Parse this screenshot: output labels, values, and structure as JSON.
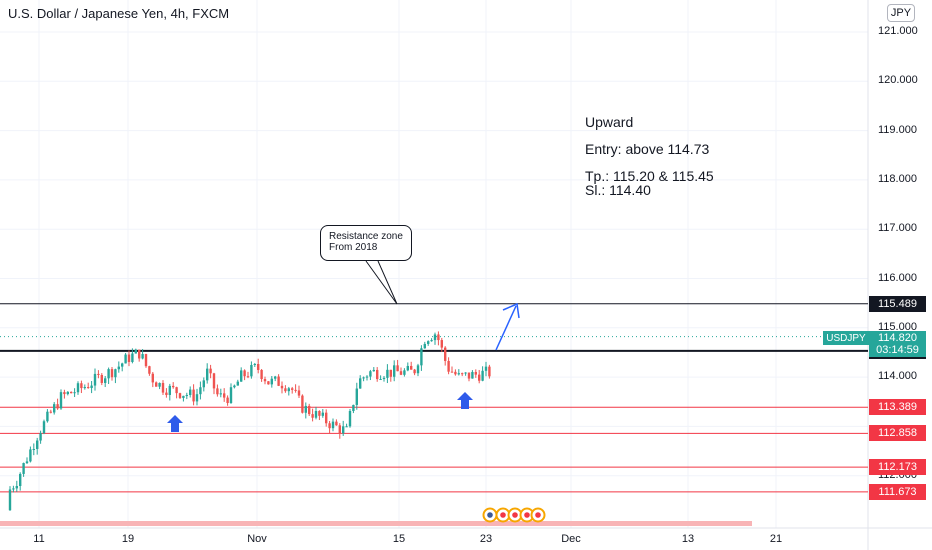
{
  "header": {
    "title": "U.S. Dollar / Japanese Yen, 4h, FXCM",
    "currency_button": "JPY"
  },
  "annotations": {
    "callout_line1": "Resistance zone",
    "callout_line2": "From 2018",
    "note_direction": "Upward",
    "note_entry": "Entry: above 114.73",
    "note_tp": "Tp.: 115.20 & 115.45",
    "note_sl": "Sl.: 114.40"
  },
  "symbol": {
    "name": "USDJPY",
    "last_price": "114.820",
    "countdown": "03:14:59"
  },
  "price_tags": [
    {
      "label": "115.489",
      "price": 115.489,
      "color": "#131722"
    },
    {
      "label": "114.531",
      "price": 114.531,
      "color": "#131722"
    },
    {
      "label": "113.389",
      "price": 113.389,
      "color": "#f23645"
    },
    {
      "label": "112.858",
      "price": 112.858,
      "color": "#f23645"
    },
    {
      "label": "112.173",
      "price": 112.173,
      "color": "#f23645"
    },
    {
      "label": "111.673",
      "price": 111.673,
      "color": "#f23645"
    }
  ],
  "chart_data": {
    "type": "candlestick",
    "title": "U.S. Dollar / Japanese Yen, 4h, FXCM",
    "ylim": [
      110.9,
      121.3
    ],
    "y_ticks": [
      "121.000",
      "120.000",
      "119.000",
      "118.000",
      "117.000",
      "116.000",
      "115.000",
      "114.000",
      "112.000"
    ],
    "y_tick_values": [
      121,
      120,
      119,
      118,
      117,
      116,
      115,
      114,
      112
    ],
    "x_ticks": [
      "11",
      "19",
      "Nov",
      "15",
      "23",
      "Dec",
      "13",
      "21"
    ],
    "grid": true,
    "horizontal_levels": [
      115.489,
      114.531,
      113.389,
      112.858,
      112.173,
      111.673
    ],
    "price_path": [
      [
        "Oct 7",
        111.3
      ],
      [
        "Oct 9",
        111.9
      ],
      [
        "Oct 11",
        112.9
      ],
      [
        "Oct 13",
        113.6
      ],
      [
        "Oct 15",
        113.8
      ],
      [
        "Oct 18",
        114.2
      ],
      [
        "Oct 19",
        114.4
      ],
      [
        "Oct 20",
        114.5
      ],
      [
        "Oct 21",
        114.0
      ],
      [
        "Oct 22",
        113.8
      ],
      [
        "Oct 25",
        113.6
      ],
      [
        "Oct 26",
        114.1
      ],
      [
        "Oct 27",
        113.6
      ],
      [
        "Oct 28",
        113.6
      ],
      [
        "Oct 29",
        114.0
      ],
      [
        "Nov 1",
        114.2
      ],
      [
        "Nov 2",
        113.9
      ],
      [
        "Nov 3",
        113.9
      ],
      [
        "Nov 4",
        113.8
      ],
      [
        "Nov 5",
        113.4
      ],
      [
        "Nov 8",
        113.0
      ],
      [
        "Nov 9",
        112.9
      ],
      [
        "Nov 10",
        113.9
      ],
      [
        "Nov 11",
        114.1
      ],
      [
        "Nov 12",
        114.1
      ],
      [
        "Nov 15",
        114.1
      ],
      [
        "Nov 16",
        114.8
      ],
      [
        "Nov 17",
        114.9
      ],
      [
        "Nov 18",
        114.2
      ],
      [
        "Nov 19",
        114.0
      ],
      [
        "Nov 22",
        114.1
      ],
      [
        "Nov 23",
        115.1
      ],
      [
        "Nov 24",
        114.82
      ]
    ],
    "markers": [
      {
        "type": "up-arrow",
        "date": "Oct 25"
      },
      {
        "type": "up-arrow",
        "date": "Nov 19"
      },
      {
        "type": "projection-arrow",
        "from": 114.6,
        "to": 115.5
      }
    ]
  }
}
